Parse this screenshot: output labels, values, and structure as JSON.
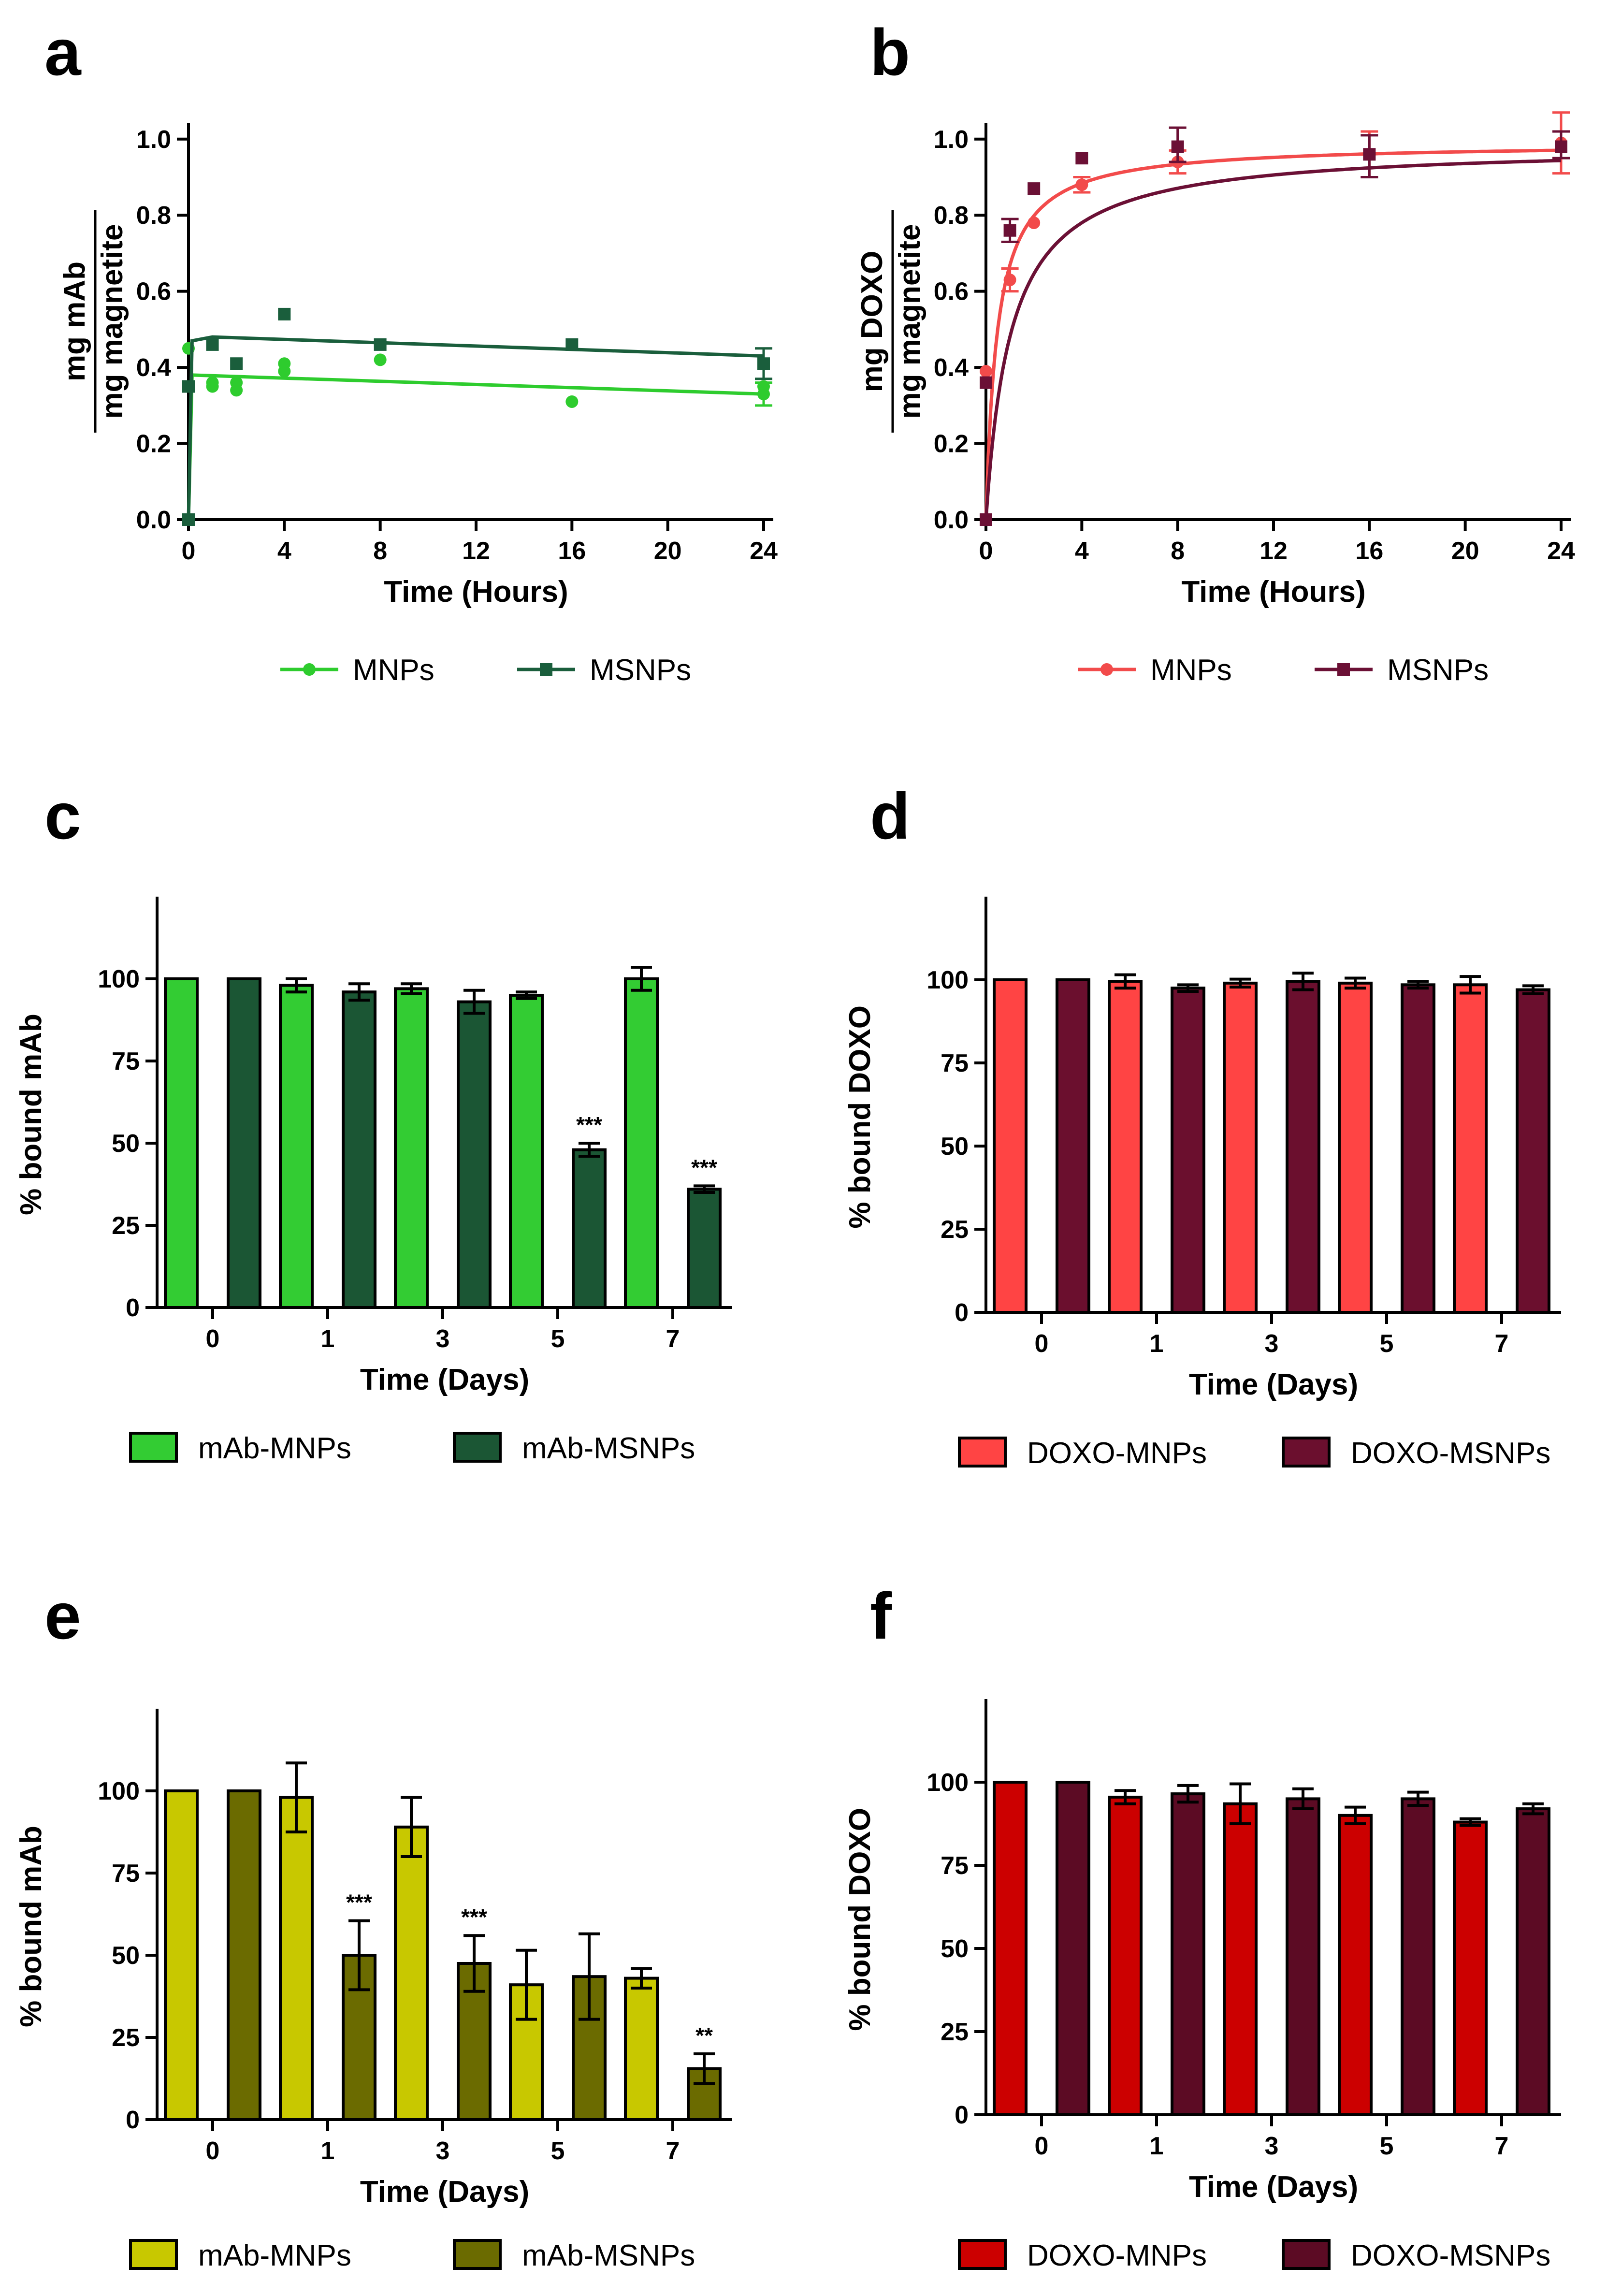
{
  "colors": {
    "mab_mnps": "#2ecc2e",
    "mab_msnps": "#1a5e3c",
    "doxo_mnps": "#f24b4b",
    "doxo_msnps": "#6b1035",
    "bar_c_mnps": "#33cc33",
    "bar_c_msnps": "#1b5634",
    "bar_d_mnps": "#ff4444",
    "bar_d_msnps": "#6b0f2e",
    "bar_e_mnps": "#c8c800",
    "bar_e_msnps": "#6b6b00",
    "bar_f_mnps": "#cc0000",
    "bar_f_msnps": "#5c0b24"
  },
  "chart_data": [
    {
      "panel": "a",
      "type": "scatter",
      "xlabel": "Time (Hours)",
      "ylabel_numerator": "mg mAb",
      "ylabel_denominator": "mg magnetite",
      "xlim": [
        0,
        24
      ],
      "ylim": [
        0,
        1.0
      ],
      "xticks": [
        0,
        4,
        8,
        12,
        16,
        20,
        24
      ],
      "yticks": [
        0.0,
        0.2,
        0.4,
        0.6,
        0.8,
        1.0
      ],
      "ytick_labels": [
        "0.0",
        "0.2",
        "0.4",
        "0.6",
        "0.8",
        "1.0"
      ],
      "legend": [
        "MNPs",
        "MSNPs"
      ],
      "series": [
        {
          "name": "MNPs",
          "marker": "circle",
          "points": [
            [
              0,
              0
            ],
            [
              0,
              0.45
            ],
            [
              1,
              0.35
            ],
            [
              1,
              0.36
            ],
            [
              2,
              0.34
            ],
            [
              2,
              0.36
            ],
            [
              4,
              0.39
            ],
            [
              4,
              0.41
            ],
            [
              8,
              0.42
            ],
            [
              16,
              0.31
            ],
            [
              24,
              0.33
            ],
            [
              24,
              0.35
            ]
          ],
          "errors": [
            [
              24,
              0.3,
              0.36
            ]
          ],
          "fit": [
            [
              0,
              0
            ],
            [
              0.15,
              0.38
            ],
            [
              24,
              0.33
            ]
          ]
        },
        {
          "name": "MSNPs",
          "marker": "square",
          "points": [
            [
              0,
              0
            ],
            [
              0,
              0.35
            ],
            [
              1,
              0.46
            ],
            [
              2,
              0.41
            ],
            [
              4,
              0.54
            ],
            [
              8,
              0.46
            ],
            [
              16,
              0.46
            ],
            [
              24,
              0.41
            ]
          ],
          "errors": [
            [
              24,
              0.37,
              0.45
            ]
          ],
          "fit": [
            [
              0,
              0
            ],
            [
              0.15,
              0.47
            ],
            [
              1,
              0.48
            ],
            [
              24,
              0.43
            ]
          ]
        }
      ]
    },
    {
      "panel": "b",
      "type": "scatter",
      "xlabel": "Time (Hours)",
      "ylabel_numerator": "mg DOXO",
      "ylabel_denominator": "mg magnetite",
      "xlim": [
        0,
        24
      ],
      "ylim": [
        0,
        1.0
      ],
      "xticks": [
        0,
        4,
        8,
        12,
        16,
        20,
        24
      ],
      "yticks": [
        0.0,
        0.2,
        0.4,
        0.6,
        0.8,
        1.0
      ],
      "ytick_labels": [
        "0.0",
        "0.2",
        "0.4",
        "0.6",
        "0.8",
        "1.0"
      ],
      "legend": [
        "MNPs",
        "MSNPs"
      ],
      "series": [
        {
          "name": "MNPs",
          "marker": "circle",
          "points": [
            [
              0,
              0
            ],
            [
              0,
              0.39
            ],
            [
              1,
              0.63
            ],
            [
              2,
              0.78
            ],
            [
              4,
              0.88
            ],
            [
              8,
              0.94
            ],
            [
              16,
              0.96
            ],
            [
              24,
              0.99
            ]
          ],
          "errors": [
            [
              1,
              0.6,
              0.66
            ],
            [
              4,
              0.86,
              0.9
            ],
            [
              8,
              0.91,
              0.97
            ],
            [
              16,
              0.9,
              1.02
            ],
            [
              24,
              0.91,
              1.07
            ]
          ],
          "fit": "saturation",
          "fit_max": 0.99,
          "fit_k": 0.48
        },
        {
          "name": "MSNPs",
          "marker": "square",
          "points": [
            [
              0,
              0
            ],
            [
              0,
              0.36
            ],
            [
              1,
              0.76
            ],
            [
              2,
              0.87
            ],
            [
              4,
              0.95
            ],
            [
              8,
              0.98
            ],
            [
              16,
              0.96
            ],
            [
              24,
              0.98
            ]
          ],
          "errors": [
            [
              1,
              0.73,
              0.79
            ],
            [
              8,
              0.94,
              1.03
            ],
            [
              16,
              0.9,
              1.01
            ],
            [
              24,
              0.95,
              1.02
            ]
          ],
          "fit": "saturation",
          "fit_max": 0.985,
          "fit_k": 1.05
        }
      ]
    },
    {
      "panel": "c",
      "type": "bar",
      "xlabel": "Time (Days)",
      "ylabel": "% bound mAb",
      "ylim": [
        0,
        125
      ],
      "yticks": [
        0,
        25,
        50,
        75,
        100
      ],
      "categories": [
        "0",
        "1",
        "3",
        "5",
        "7"
      ],
      "legend": [
        "mAb-MNPs",
        "mAb-MSNPs"
      ],
      "series": [
        {
          "name": "mAb-MNPs",
          "values": [
            100,
            98,
            97,
            95,
            100
          ],
          "errors": [
            0,
            2,
            1.5,
            1,
            3.5
          ]
        },
        {
          "name": "mAb-MSNPs",
          "values": [
            100,
            96,
            93,
            48,
            36
          ],
          "errors": [
            0,
            2.5,
            3.5,
            2,
            1
          ]
        }
      ],
      "annotations": [
        {
          "series": 1,
          "category": 3,
          "text": "***"
        },
        {
          "series": 1,
          "category": 4,
          "text": "***"
        }
      ]
    },
    {
      "panel": "d",
      "type": "bar",
      "xlabel": "Time (Days)",
      "ylabel": "% bound DOXO",
      "ylim": [
        0,
        125
      ],
      "yticks": [
        0,
        25,
        50,
        75,
        100
      ],
      "categories": [
        "0",
        "1",
        "3",
        "5",
        "7"
      ],
      "legend": [
        "DOXO-MNPs",
        "DOXO-MSNPs"
      ],
      "series": [
        {
          "name": "DOXO-MNPs",
          "values": [
            100,
            99.5,
            99,
            99,
            98.5
          ],
          "errors": [
            0,
            2,
            1.2,
            1.5,
            2.5
          ]
        },
        {
          "name": "DOXO-MSNPs",
          "values": [
            100,
            97.5,
            99.5,
            98.5,
            97
          ],
          "errors": [
            0,
            1,
            2.5,
            1,
            1.2
          ]
        }
      ],
      "annotations": []
    },
    {
      "panel": "e",
      "type": "bar",
      "xlabel": "Time (Days)",
      "ylabel": "% bound mAb",
      "ylim": [
        0,
        125
      ],
      "yticks": [
        0,
        25,
        50,
        75,
        100
      ],
      "categories": [
        "0",
        "1",
        "3",
        "5",
        "7"
      ],
      "legend": [
        "mAb-MNPs",
        "mAb-MSNPs"
      ],
      "series": [
        {
          "name": "mAb-MNPs",
          "values": [
            100,
            98,
            89,
            41,
            43
          ],
          "errors": [
            0,
            10.5,
            9,
            10.5,
            3
          ]
        },
        {
          "name": "mAb-MSNPs",
          "values": [
            100,
            50,
            47.5,
            43.5,
            15.5
          ],
          "errors": [
            0,
            10.5,
            8.5,
            13,
            4.5
          ]
        }
      ],
      "annotations": [
        {
          "series": 1,
          "category": 1,
          "text": "***"
        },
        {
          "series": 1,
          "category": 2,
          "text": "***"
        },
        {
          "series": 1,
          "category": 4,
          "text": "**"
        }
      ]
    },
    {
      "panel": "f",
      "type": "bar",
      "xlabel": "Time (Days)",
      "ylabel": "% bound DOXO",
      "ylim": [
        0,
        125
      ],
      "yticks": [
        0,
        25,
        50,
        75,
        100
      ],
      "categories": [
        "0",
        "1",
        "3",
        "5",
        "7"
      ],
      "legend": [
        "DOXO-MNPs",
        "DOXO-MSNPs"
      ],
      "series": [
        {
          "name": "DOXO-MNPs",
          "values": [
            100,
            95.5,
            93.5,
            90,
            88
          ],
          "errors": [
            0,
            2,
            6,
            2.5,
            1
          ]
        },
        {
          "name": "DOXO-MSNPs",
          "values": [
            100,
            96.5,
            95,
            95,
            92
          ],
          "errors": [
            0,
            2.5,
            3,
            2,
            1.5
          ]
        }
      ],
      "annotations": []
    }
  ]
}
